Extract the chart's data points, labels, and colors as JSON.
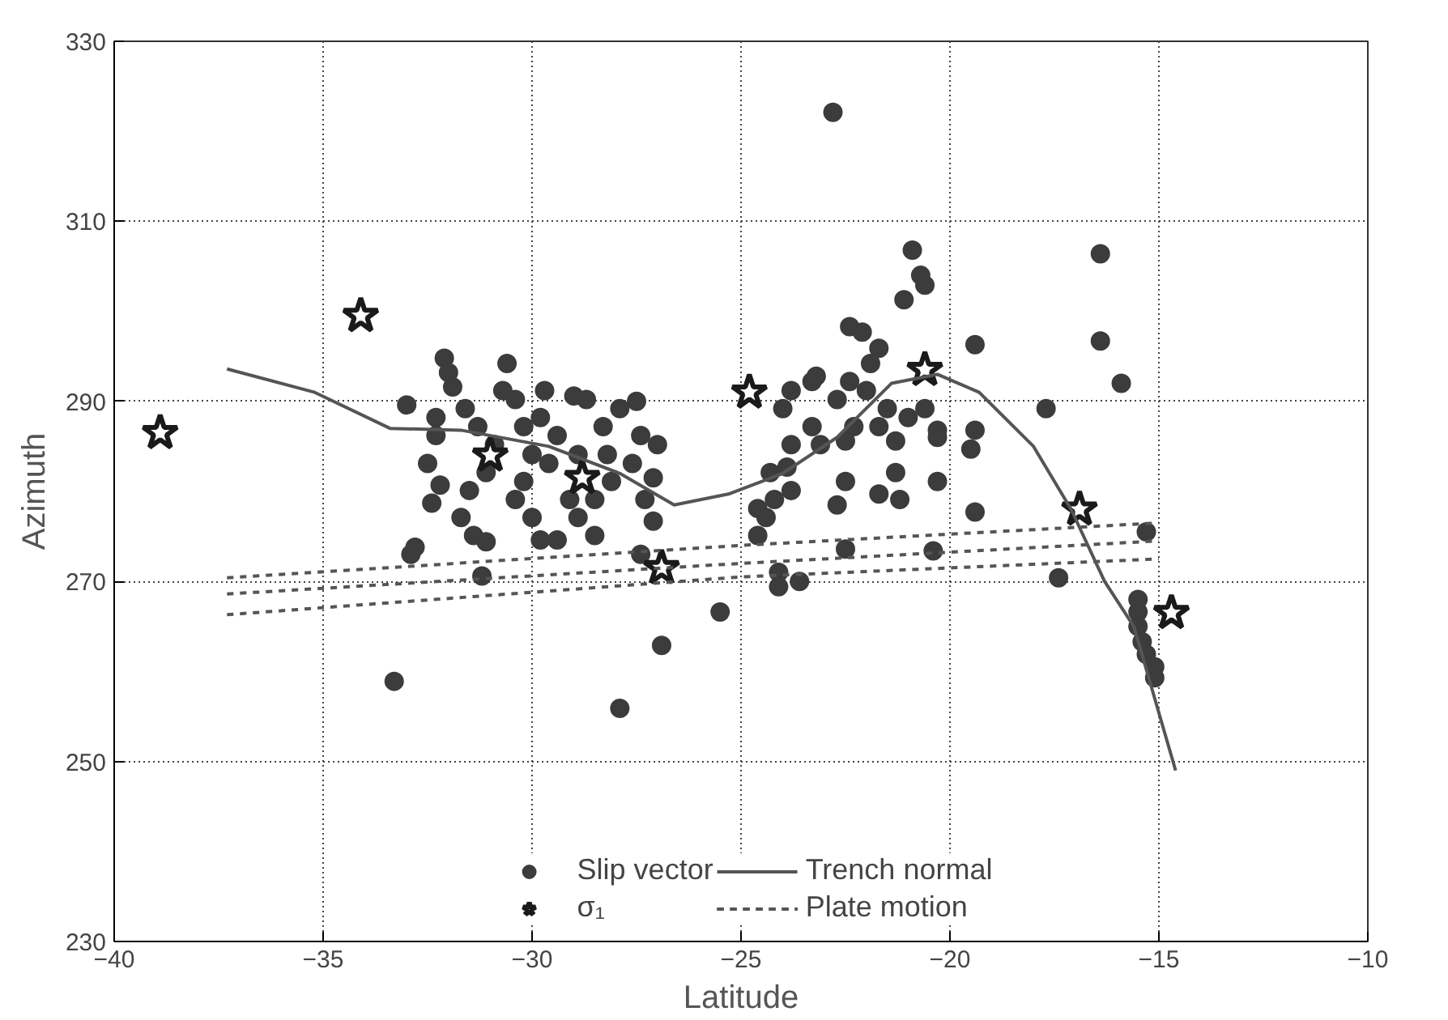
{
  "chart_data": {
    "type": "scatter",
    "xlabel": "Latitude",
    "ylabel": "Azimuth",
    "xlim": [
      -40,
      -10
    ],
    "ylim": [
      230,
      330
    ],
    "xticks": [
      -40,
      -35,
      -30,
      -25,
      -20,
      -15,
      -10
    ],
    "yticks": [
      230,
      250,
      270,
      290,
      310,
      330
    ],
    "grid": true,
    "legend": "bottom",
    "series": [
      {
        "name": "Slip vector",
        "marker": "circle",
        "color": "#3c3c3c",
        "x": [
          -33.0,
          -32.8,
          -32.9,
          -33.3,
          -32.1,
          -32.0,
          -31.9,
          -32.3,
          -32.3,
          -32.5,
          -32.2,
          -32.4,
          -30.6,
          -31.6,
          -31.3,
          -30.9,
          -31.1,
          -31.5,
          -31.7,
          -31.4,
          -31.1,
          -31.2,
          -30.4,
          -30.2,
          -30.0,
          -30.2,
          -30.4,
          -30.0,
          -29.8,
          -29.7,
          -29.4,
          -29.6,
          -29.1,
          -28.9,
          -29.4,
          -29.0,
          -28.7,
          -28.3,
          -28.2,
          -28.5,
          -28.1,
          -27.9,
          -27.5,
          -27.4,
          -27.6,
          -27.1,
          -27.3,
          -27.1,
          -27.4,
          -26.9,
          -27.9,
          -25.5,
          -27.0,
          -30.7,
          -29.8,
          -28.9,
          -28.5,
          -22.8,
          -20.9,
          -20.7,
          -21.1,
          -20.6,
          -22.4,
          -22.1,
          -21.7,
          -22.0,
          -21.5,
          -21.7,
          -21.3,
          -22.3,
          -22.5,
          -22.5,
          -21.3,
          -21.2,
          -21.7,
          -20.3,
          -20.3,
          -20.6,
          -21.0,
          -20.3,
          -19.4,
          -19.4,
          -19.4,
          -19.5,
          -20.4,
          -22.5,
          -22.7,
          -23.1,
          -23.3,
          -23.9,
          -23.8,
          -24.2,
          -24.4,
          -24.6,
          -24.1,
          -23.6,
          -24.1,
          -24.6,
          -24.3,
          -23.8,
          -24.0,
          -23.8,
          -23.3,
          -23.2,
          -22.4,
          -22.7,
          -21.9,
          -16.4,
          -16.4,
          -15.9,
          -17.7,
          -17.4,
          -15.3,
          -15.5,
          -15.5,
          -15.5,
          -15.4,
          -15.3,
          -15.1,
          -15.1
        ],
        "values": [
          289.6,
          273.8,
          273,
          258.9,
          294.8,
          293.2,
          291.6,
          288.2,
          286.2,
          283.1,
          280.7,
          278.7,
          294.2,
          289.2,
          287.2,
          285.2,
          282.1,
          280.1,
          277.1,
          275.1,
          274.4,
          270.6,
          290.2,
          287.2,
          284.1,
          281.1,
          279.1,
          277.1,
          274.6,
          291.2,
          286.2,
          283.1,
          279.1,
          277.1,
          274.6,
          290.6,
          290.2,
          287.2,
          284.1,
          279.1,
          281.1,
          289.2,
          290,
          286.2,
          283.1,
          281.5,
          279.1,
          276.7,
          273,
          262.9,
          255.9,
          266.6,
          285.2,
          291.2,
          288.2,
          284.1,
          275.1,
          322.1,
          306.8,
          304,
          301.3,
          302.9,
          298.3,
          297.7,
          295.9,
          291.2,
          289.2,
          287.2,
          285.6,
          287.2,
          285.6,
          281.1,
          282.1,
          279.1,
          279.7,
          286.8,
          281.1,
          289.2,
          288.2,
          286,
          296.3,
          277.7,
          286.8,
          284.7,
          273.4,
          273.6,
          278.5,
          285.2,
          287.2,
          282.7,
          280.1,
          279.1,
          277.1,
          275.1,
          271,
          270,
          269.4,
          278.1,
          282.1,
          285.2,
          289.2,
          291.2,
          292.2,
          292.8,
          292.2,
          290.2,
          294.2,
          306.4,
          296.7,
          292,
          289.2,
          270.4,
          275.5,
          268,
          266.6,
          265,
          263.3,
          261.9,
          260.5,
          259.3
        ]
      },
      {
        "name": "σ₁",
        "marker": "star",
        "color": "#1a1a1a",
        "x": [
          -38.9,
          -34.1,
          -31.0,
          -28.8,
          -26.9,
          -24.8,
          -20.6,
          -16.9,
          -14.7
        ],
        "values": [
          286.5,
          299.5,
          284,
          281.5,
          271.5,
          291,
          293.5,
          278,
          266.5
        ]
      },
      {
        "name": "Trench normal",
        "type": "line",
        "line_style": "solid",
        "color": "#555555",
        "x": [
          -37.3,
          -35.2,
          -33.4,
          -31.7,
          -29.6,
          -27.9,
          -26.6,
          -25.3,
          -24.0,
          -22.7,
          -21.4,
          -20.3,
          -19.3,
          -18.0,
          -17.1,
          -16.3,
          -15.6,
          -14.6
        ],
        "values": [
          293.6,
          291,
          287,
          286.8,
          285,
          282,
          278.5,
          279.7,
          282,
          286,
          292,
          293,
          291,
          285,
          278,
          270,
          265,
          249
        ]
      },
      {
        "name": "Plate motion",
        "type": "line",
        "line_style": "dashed",
        "color": "#555555",
        "x": [
          -37.3,
          -25,
          -15
        ],
        "values": [
          270.4,
          274,
          276.5
        ]
      },
      {
        "type": "line",
        "line_style": "dashed",
        "color": "#555555",
        "x": [
          -37.3,
          -25,
          -15
        ],
        "values": [
          268.6,
          272,
          274.5
        ]
      },
      {
        "type": "line",
        "line_style": "dashed",
        "color": "#555555",
        "x": [
          -37.3,
          -25,
          -15
        ],
        "values": [
          266.3,
          270.5,
          272.5
        ]
      }
    ]
  }
}
